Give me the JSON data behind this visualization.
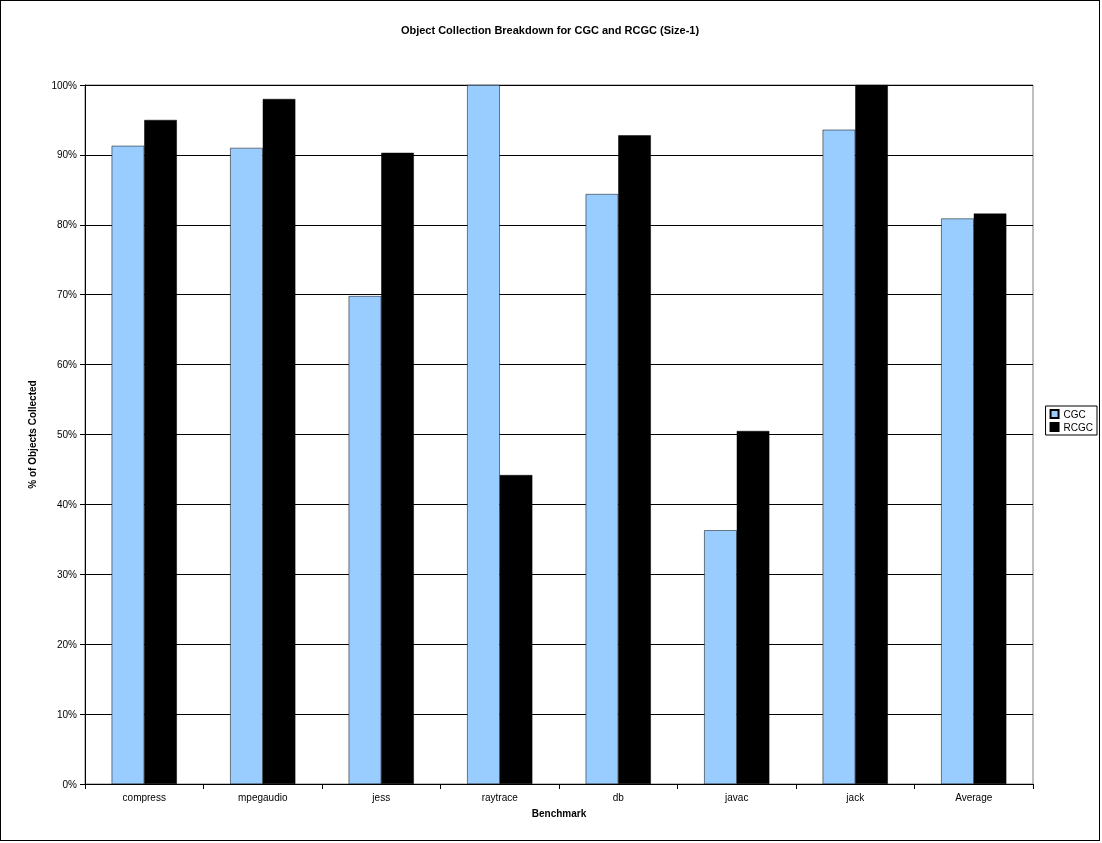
{
  "chart_data": {
    "type": "bar",
    "title": "Object Collection Breakdown for CGC and RCGC (Size-1)",
    "xlabel": "Benchmark",
    "ylabel": "% of Objects Collected",
    "categories": [
      "compress",
      "mpegaudio",
      "jess",
      "raytrace",
      "db",
      "javac",
      "jack",
      "Average"
    ],
    "series": [
      {
        "name": "CGC",
        "color": "#99ccff",
        "values": [
          91.3,
          91,
          69.8,
          100,
          84.4,
          36.3,
          93.6,
          80.9
        ]
      },
      {
        "name": "RCGC",
        "color": "#000000",
        "values": [
          95,
          98,
          90.3,
          44.2,
          92.8,
          50.5,
          100,
          81.6
        ]
      }
    ],
    "ylim": [
      0,
      100
    ],
    "yticks": [
      {
        "value": 0,
        "label": "0%"
      },
      {
        "value": 10,
        "label": "10%"
      },
      {
        "value": 20,
        "label": "20%"
      },
      {
        "value": 30,
        "label": "30%"
      },
      {
        "value": 40,
        "label": "40%"
      },
      {
        "value": 50,
        "label": "50%"
      },
      {
        "value": 60,
        "label": "60%"
      },
      {
        "value": 70,
        "label": "70%"
      },
      {
        "value": 80,
        "label": "80%"
      },
      {
        "value": 90,
        "label": "90%"
      },
      {
        "value": 100,
        "label": "100%"
      }
    ],
    "grid": "y",
    "legend": "right"
  }
}
